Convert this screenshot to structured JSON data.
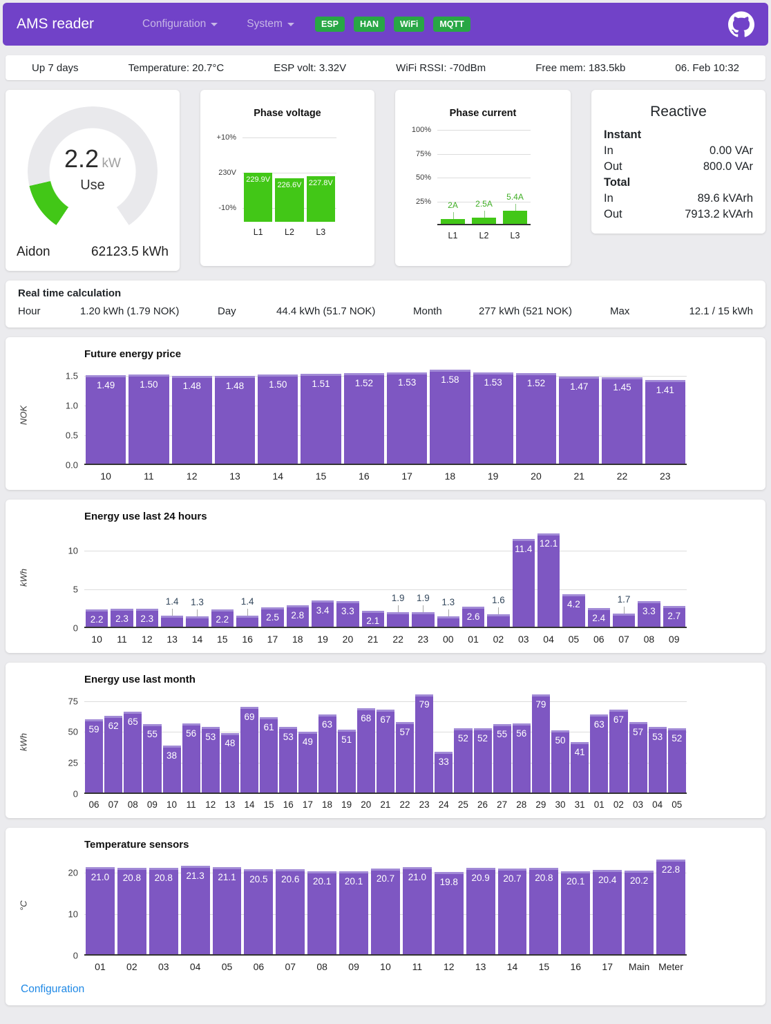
{
  "header": {
    "brand": "AMS reader",
    "nav": [
      {
        "label": "Configuration"
      },
      {
        "label": "System"
      }
    ],
    "badges": [
      "ESP",
      "HAN",
      "WiFi",
      "MQTT"
    ]
  },
  "status_bar": {
    "items": [
      "Up 7 days",
      "Temperature: 20.7°C",
      "ESP volt: 3.32V",
      "WiFi RSSI: -70dBm",
      "Free mem: 183.5kb",
      "06. Feb 10:32"
    ]
  },
  "gauge": {
    "value": "2.2",
    "unit": "kW",
    "label": "Use",
    "meter": "Aidon",
    "total": "62123.5 kWh",
    "max_kw": 15
  },
  "reactive": {
    "title": "Reactive",
    "sections": [
      {
        "label": "Instant",
        "rows": [
          {
            "label": "In",
            "value": "0.00 VAr"
          },
          {
            "label": "Out",
            "value": "800.0 VAr"
          }
        ]
      },
      {
        "label": "Total",
        "rows": [
          {
            "label": "In",
            "value": "89.6 kVArh"
          },
          {
            "label": "Out",
            "value": "7913.2 kVArh"
          }
        ]
      }
    ]
  },
  "realtime": {
    "title": "Real time calculation",
    "items": [
      {
        "label": "Hour",
        "value": "1.20 kWh (1.79 NOK)"
      },
      {
        "label": "Day",
        "value": "44.4 kWh (51.7 NOK)"
      },
      {
        "label": "Month",
        "value": "277 kWh (521 NOK)"
      },
      {
        "label": "Max",
        "value": "12.1 / 15 kWh"
      }
    ]
  },
  "chart_data": [
    {
      "id": "phase_voltage",
      "type": "bar",
      "title": "Phase voltage",
      "categories": [
        "L1",
        "L2",
        "L3"
      ],
      "values": [
        229.9,
        226.6,
        227.8
      ],
      "bar_labels": [
        "229.9V",
        "226.6V",
        "227.8V"
      ],
      "ymin": 198,
      "ymax": 258,
      "ticks": [
        {
          "v": 253,
          "label": "+10%"
        },
        {
          "v": 230,
          "label": "230V"
        },
        {
          "v": 207,
          "label": "-10%"
        }
      ],
      "bar_color": "#42c717",
      "label_mode": "inside",
      "baseline": false
    },
    {
      "id": "phase_current",
      "type": "bar",
      "title": "Phase current",
      "categories": [
        "L1",
        "L2",
        "L3"
      ],
      "values": [
        2,
        2.5,
        5.4
      ],
      "bar_labels": [
        "2A",
        "2.5A",
        "5.4A"
      ],
      "ymin": 0,
      "ymax": 40,
      "ticks": [
        {
          "v": 40,
          "label": "100%"
        },
        {
          "v": 30,
          "label": "75%"
        },
        {
          "v": 20,
          "label": "50%"
        },
        {
          "v": 10,
          "label": "25%"
        }
      ],
      "bar_color": "#42c717",
      "label_mode": "above",
      "above_color": "#3fae24",
      "connector_color": "#86c979",
      "baseline": true
    },
    {
      "id": "price",
      "type": "bar",
      "title": "Future energy price",
      "ylabel": "NOK",
      "categories": [
        "10",
        "11",
        "12",
        "13",
        "14",
        "15",
        "16",
        "17",
        "18",
        "19",
        "20",
        "21",
        "22",
        "23"
      ],
      "values": [
        1.49,
        1.5,
        1.48,
        1.48,
        1.5,
        1.51,
        1.52,
        1.53,
        1.58,
        1.53,
        1.52,
        1.47,
        1.45,
        1.41
      ],
      "bar_labels": [
        "1.49",
        "1.50",
        "1.48",
        "1.48",
        "1.50",
        "1.51",
        "1.52",
        "1.53",
        "1.58",
        "1.53",
        "1.52",
        "1.47",
        "1.45",
        "1.41"
      ],
      "ymin": 0,
      "ymax": 1.65,
      "ticks": [
        {
          "v": 0,
          "label": "0.0"
        },
        {
          "v": 0.5,
          "label": "0.5"
        },
        {
          "v": 1.0,
          "label": "1.0"
        },
        {
          "v": 1.5,
          "label": "1.5"
        }
      ],
      "bar_color": "#7e57c2",
      "cap": "#a18ad6",
      "label_mode": "auto",
      "above_color": "#33475c",
      "connector_color": "#a6a6a6",
      "baseline": true
    },
    {
      "id": "last24",
      "type": "bar",
      "title": "Energy use last 24 hours",
      "ylabel": "kWh",
      "categories": [
        "10",
        "11",
        "12",
        "13",
        "14",
        "15",
        "16",
        "17",
        "18",
        "19",
        "20",
        "21",
        "22",
        "23",
        "00",
        "01",
        "02",
        "03",
        "04",
        "05",
        "06",
        "07",
        "08",
        "09"
      ],
      "values": [
        2.2,
        2.3,
        2.3,
        1.4,
        1.3,
        2.2,
        1.4,
        2.5,
        2.8,
        3.4,
        3.3,
        2.1,
        1.9,
        1.9,
        1.3,
        2.6,
        1.6,
        11.4,
        12.1,
        4.2,
        2.4,
        1.7,
        3.3,
        2.7
      ],
      "bar_labels": [
        "2.2",
        "2.3",
        "2.3",
        "1.4",
        "1.3",
        "2.2",
        "1.4",
        "2.5",
        "2.8",
        "3.4",
        "3.3",
        "2.1",
        "1.9",
        "1.9",
        "1.3",
        "2.6",
        "1.6",
        "11.4",
        "12.1",
        "4.2",
        "2.4",
        "1.7",
        "3.3",
        "2.7"
      ],
      "ymin": 0,
      "ymax": 12.8,
      "ticks": [
        {
          "v": 0,
          "label": "0"
        },
        {
          "v": 5,
          "label": "5"
        },
        {
          "v": 10,
          "label": "10"
        }
      ],
      "bar_color": "#7e57c2",
      "cap": "#a18ad6",
      "label_mode": "auto",
      "above_color": "#33475c",
      "connector_color": "#a6a6a6",
      "baseline": true
    },
    {
      "id": "month",
      "type": "bar",
      "title": "Energy use last month",
      "ylabel": "kWh",
      "categories": [
        "06",
        "07",
        "08",
        "09",
        "10",
        "11",
        "12",
        "13",
        "14",
        "15",
        "16",
        "17",
        "18",
        "19",
        "20",
        "21",
        "22",
        "23",
        "24",
        "25",
        "26",
        "27",
        "28",
        "29",
        "30",
        "31",
        "01",
        "02",
        "03",
        "04",
        "05"
      ],
      "values": [
        59,
        62,
        65,
        55,
        38,
        56,
        53,
        48,
        69,
        61,
        53,
        49,
        63,
        51,
        68,
        67,
        57,
        79,
        33,
        52,
        52,
        55,
        56,
        79,
        50,
        41,
        63,
        67,
        57,
        53,
        52
      ],
      "bar_labels": [
        "59",
        "62",
        "65",
        "55",
        "38",
        "56",
        "53",
        "48",
        "69",
        "61",
        "53",
        "49",
        "63",
        "51",
        "68",
        "67",
        "57",
        "79",
        "33",
        "52",
        "52",
        "55",
        "56",
        "79",
        "50",
        "41",
        "63",
        "67",
        "57",
        "53",
        "52"
      ],
      "ymin": 0,
      "ymax": 82,
      "ticks": [
        {
          "v": 0,
          "label": "0"
        },
        {
          "v": 25,
          "label": "25"
        },
        {
          "v": 50,
          "label": "50"
        },
        {
          "v": 75,
          "label": "75"
        }
      ],
      "bar_color": "#7e57c2",
      "cap": "#a18ad6",
      "label_mode": "auto",
      "above_color": "#33475c",
      "connector_color": "#a6a6a6",
      "baseline": true
    },
    {
      "id": "temp",
      "type": "bar",
      "title": "Temperature sensors",
      "ylabel": "°C",
      "categories": [
        "01",
        "02",
        "03",
        "04",
        "05",
        "06",
        "07",
        "08",
        "09",
        "10",
        "11",
        "12",
        "13",
        "14",
        "15",
        "16",
        "17",
        "Main",
        "Meter"
      ],
      "values": [
        21.0,
        20.8,
        20.8,
        21.3,
        21.1,
        20.5,
        20.6,
        20.1,
        20.1,
        20.7,
        21.0,
        19.8,
        20.9,
        20.7,
        20.8,
        20.1,
        20.4,
        20.2,
        22.8
      ],
      "bar_labels": [
        "21.0",
        "20.8",
        "20.8",
        "21.3",
        "21.1",
        "20.5",
        "20.6",
        "20.1",
        "20.1",
        "20.7",
        "21.0",
        "19.8",
        "20.9",
        "20.7",
        "20.8",
        "20.1",
        "20.4",
        "20.2",
        "22.8"
      ],
      "ymin": 0,
      "ymax": 23.7,
      "ticks": [
        {
          "v": 0,
          "label": "0"
        },
        {
          "v": 10,
          "label": "10"
        },
        {
          "v": 20,
          "label": "20"
        }
      ],
      "bar_color": "#7e57c2",
      "cap": "#a18ad6",
      "label_mode": "auto",
      "above_color": "#33475c",
      "connector_color": "#a6a6a6",
      "baseline": true
    }
  ],
  "footer": {
    "link": "Configuration"
  },
  "colors": {
    "accent_purple": "#7142c8",
    "bar_purple": "#7e57c2",
    "badge_green": "#28a745",
    "chart_green": "#42c717",
    "link_blue": "#1e88e5",
    "gauge_track": "#e9e9ec"
  }
}
